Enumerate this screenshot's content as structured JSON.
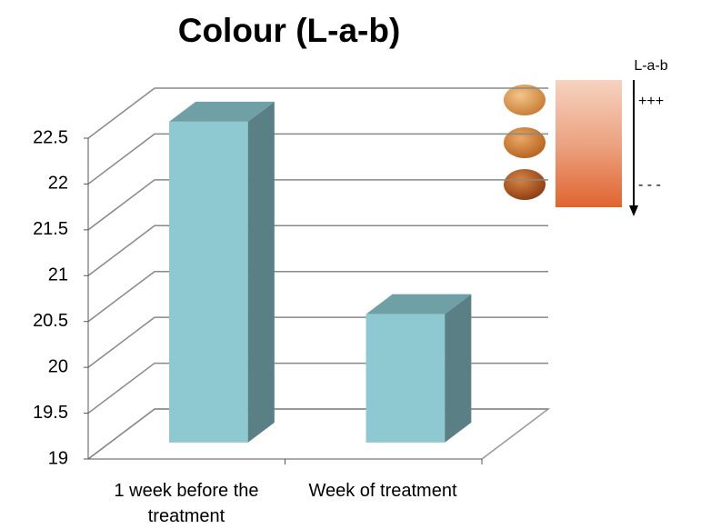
{
  "chart_data": {
    "type": "bar3d",
    "title": "Colour (L-a-b)",
    "categories": [
      "1 week before the treatment",
      "Week of treatment"
    ],
    "values": [
      22.5,
      20.4
    ],
    "color": "#8ec8d0",
    "ylim": [
      19,
      22.5
    ],
    "yticks": [
      19,
      19.5,
      20,
      20.5,
      21,
      21.5,
      22,
      22.5
    ],
    "grid": true,
    "annotations": [
      "L-a-b",
      "+++",
      "- - -"
    ]
  }
}
